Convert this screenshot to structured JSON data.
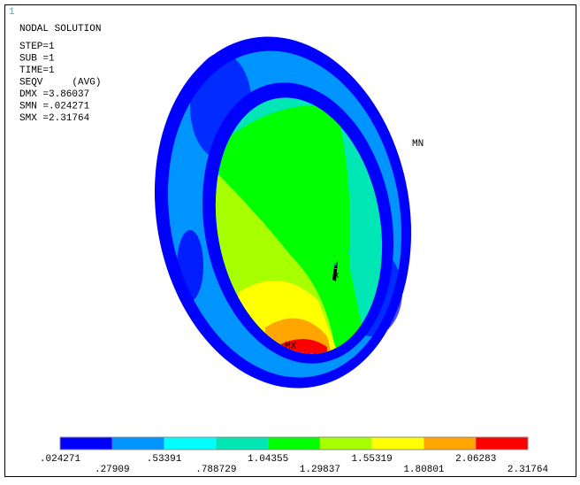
{
  "window_number": "1",
  "header": {
    "title": "NODAL SOLUTION",
    "lines": [
      "STEP=1",
      "SUB =1",
      "TIME=1",
      "SEQV     (AVG)",
      "DMX =3.86037",
      "SMN =.024271",
      "SMX =2.31764"
    ]
  },
  "markers": {
    "min": "MN",
    "max": "MX",
    "axis_y": "Y",
    "axis_z": "Z",
    "axis_x": "X"
  },
  "legend": {
    "colors": [
      "#0000ff",
      "#0094ff",
      "#00ffff",
      "#00e6b4",
      "#00ff00",
      "#a8ff00",
      "#ffff00",
      "#ffa500",
      "#ff0000"
    ],
    "labels": [
      ".024271",
      ".27909",
      ".53391",
      ".788729",
      "1.04355",
      "1.29837",
      "1.55319",
      "1.80801",
      "2.06283",
      "2.31764"
    ]
  }
}
